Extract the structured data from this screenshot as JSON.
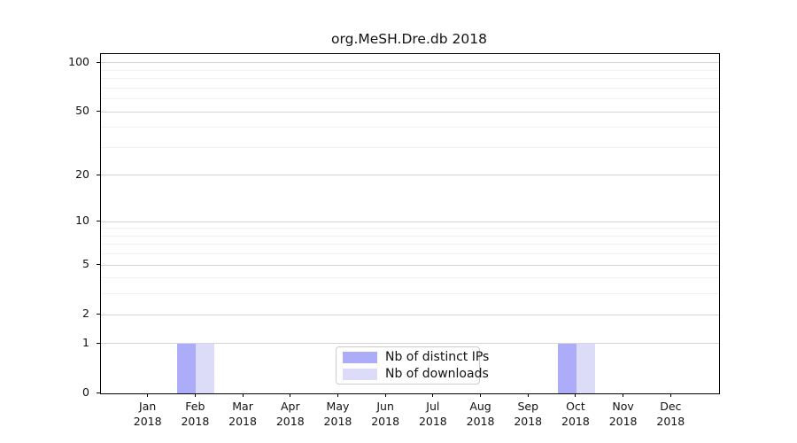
{
  "chart_data": {
    "type": "bar",
    "title": "org.MeSH.Dre.db 2018",
    "scale": "log1p",
    "categories": [
      "Jan",
      "Feb",
      "Mar",
      "Apr",
      "May",
      "Jun",
      "Jul",
      "Aug",
      "Sep",
      "Oct",
      "Nov",
      "Dec"
    ],
    "category_year_label": "2018",
    "series": [
      {
        "name": "Nb of distinct IPs",
        "color": "#acacf8",
        "values": [
          0,
          1,
          0,
          0,
          0,
          0,
          0,
          0,
          0,
          1,
          0,
          0
        ]
      },
      {
        "name": "Nb of downloads",
        "color": "#dcdcf8",
        "values": [
          0,
          1,
          0,
          0,
          0,
          0,
          0,
          0,
          0,
          1,
          0,
          0
        ]
      }
    ],
    "y_major_ticks": [
      0,
      1,
      2,
      5,
      10,
      20,
      50,
      100
    ],
    "y_minor_gridlines": [
      3,
      4,
      6,
      7,
      8,
      9,
      30,
      40,
      60,
      70,
      80,
      90
    ],
    "ylim": [
      0,
      113
    ],
    "grid": "horizontal",
    "legend_position": "bottom-center",
    "colors": {
      "major_gridline": "#d4d4d4",
      "minor_gridline": "#f1f1f1",
      "spine": "#000000",
      "text": "#111111"
    }
  }
}
